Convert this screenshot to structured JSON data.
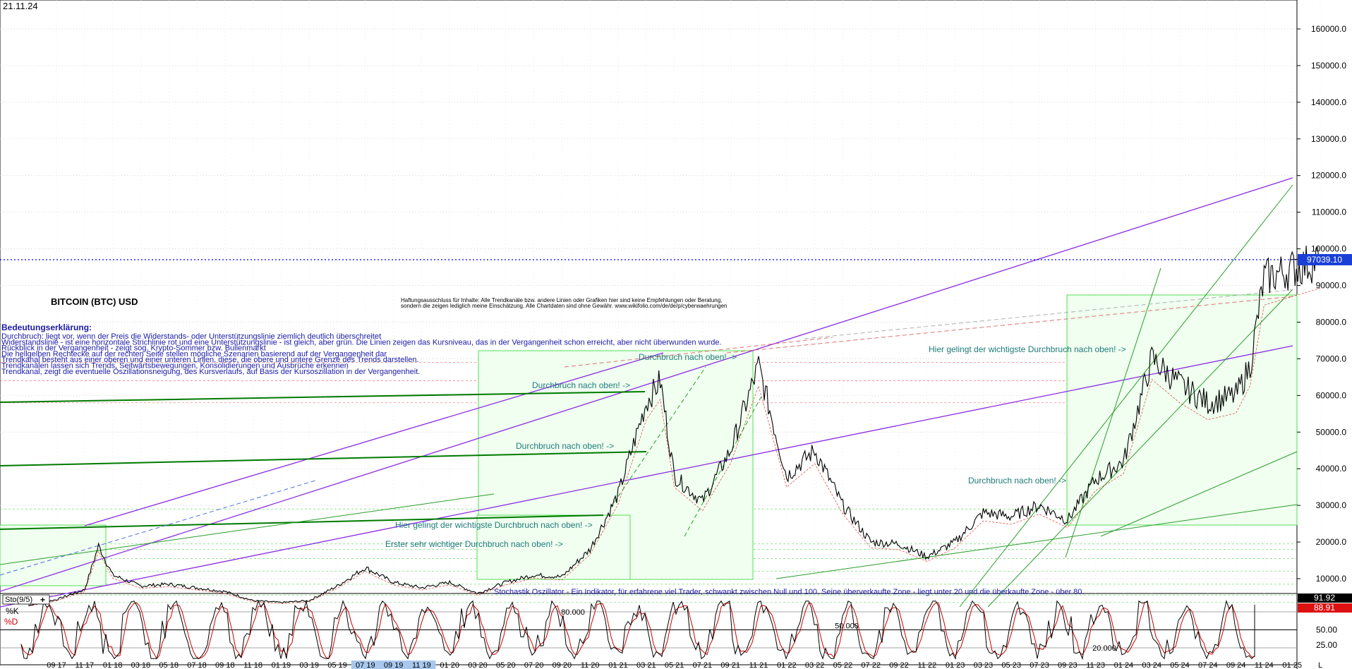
{
  "header": {
    "date": "21.11.24"
  },
  "chart_data": {
    "type": "line",
    "title": "BITCOIN (BTC) USD",
    "disclaimer": [
      "Haftungsausschluss für Inhalte: Alle Trendkanäle bzw. andere Linien oder Grafiken hier sind keine Empfehlungen oder Beratung,",
      "sondern die zeigen lediglich meine Einschätzung. Alle Chartdaten sind ohne Gewähr. www.wikifolio.com/de/de/p/cyberwaehrungen"
    ],
    "explanation_title": "Bedeutungserklärung:",
    "explanation_lines": [
      "Durchbruch: liegt vor, wenn der Preis die Widerstands- oder Unterstützungslinie ziemlich deutlich überschreitet",
      "Widerstandslinie - ist eine horizontale Strichlinie rot und eine Unterstützungslinie - ist gleich, aber grün. Die Linien zeigen das Kursniveau, das in der Vergangenheit schon erreicht, aber nicht überwunden wurde.",
      "Rückblick in der Vergangenheit - zeigt sog. Krypto-Sommer bzw. Bullenmarkt",
      "Die hellgelben Rechtecke auf der rechten Seite stellen mögliche Szenarien basierend auf der Vergangenheit dar",
      "Trendkanal besteht aus einer oberen und einer unteren Linien, diese, die obere und untere Grenze des Trends darstellen.",
      "Trendkanälen lassen sich Trends, Seitwärtsbewegungen, Konsolidierungen und Ausbrüche erkennen",
      "Trendkanal, zeigt die eventuelle Oszillationsneigung, des Kursverlaufs, auf Basis der Kursoszillation in der Vergangenheit."
    ],
    "annotations": [
      "Durchbruch nach oben! ->",
      "Durchbruch nach oben! ->",
      "Durchbruch nach oben! ->",
      "Hier gelingt der wichtigste Durchbruch nach oben! ->",
      "Erster sehr wichtiger Durchbruch nach oben! ->",
      "Durchbruch nach oben! ->",
      "Hier gelingt der wichtigste Durchbruch nach oben! ->"
    ],
    "y_ticks": [
      "160000.0",
      "150000.0",
      "140000.0",
      "130000.0",
      "120000.0",
      "110000.0",
      "100000.0",
      "90000.0",
      "80000.0",
      "70000.0",
      "60000.0",
      "50000.0",
      "40000.0",
      "30000.0",
      "20000.0",
      "10000.0"
    ],
    "ylim": [
      0,
      170000
    ],
    "last_price": "97039.10",
    "last_price_value": 97039.1,
    "x_ticks": [
      "09 17",
      "11 17",
      "01 18",
      "03 18",
      "05 18",
      "07 18",
      "09 18",
      "11 18",
      "01 19",
      "03 19",
      "05 19",
      "07 19",
      "09 19",
      "11 19",
      "01 20",
      "03 20",
      "05 20",
      "07 20",
      "09 20",
      "11 20",
      "01 21",
      "03 21",
      "05 21",
      "07 21",
      "09 21",
      "11 21",
      "01 22",
      "03 22",
      "05 22",
      "07 22",
      "09 22",
      "11 22",
      "01 23",
      "03 23",
      "05 23",
      "07 23",
      "09 23",
      "11 23",
      "01 24",
      "03 24",
      "05 24",
      "07 24",
      "09 24",
      "11 24",
      "01 25",
      "L"
    ],
    "price_series": [
      {
        "date": "07 17",
        "value": 2700
      },
      {
        "date": "09 17",
        "value": 4300
      },
      {
        "date": "11 17",
        "value": 7000
      },
      {
        "date": "12 17",
        "value": 19000
      },
      {
        "date": "01 18",
        "value": 11000
      },
      {
        "date": "03 18",
        "value": 8000
      },
      {
        "date": "05 18",
        "value": 8500
      },
      {
        "date": "07 18",
        "value": 7500
      },
      {
        "date": "09 18",
        "value": 6500
      },
      {
        "date": "11 18",
        "value": 4000
      },
      {
        "date": "01 19",
        "value": 3500
      },
      {
        "date": "03 19",
        "value": 4000
      },
      {
        "date": "05 19",
        "value": 8000
      },
      {
        "date": "07 19",
        "value": 13000
      },
      {
        "date": "09 19",
        "value": 9000
      },
      {
        "date": "11 19",
        "value": 7500
      },
      {
        "date": "01 20",
        "value": 9000
      },
      {
        "date": "03 20",
        "value": 6000
      },
      {
        "date": "05 20",
        "value": 9000
      },
      {
        "date": "07 20",
        "value": 11000
      },
      {
        "date": "09 20",
        "value": 10500
      },
      {
        "date": "11 20",
        "value": 18000
      },
      {
        "date": "01 21",
        "value": 33000
      },
      {
        "date": "03 21",
        "value": 58000
      },
      {
        "date": "04 21",
        "value": 64000
      },
      {
        "date": "05 21",
        "value": 38000
      },
      {
        "date": "07 21",
        "value": 31000
      },
      {
        "date": "09 21",
        "value": 45000
      },
      {
        "date": "11 21",
        "value": 68000
      },
      {
        "date": "01 22",
        "value": 38000
      },
      {
        "date": "03 22",
        "value": 45000
      },
      {
        "date": "05 22",
        "value": 30000
      },
      {
        "date": "07 22",
        "value": 20000
      },
      {
        "date": "09 22",
        "value": 19500
      },
      {
        "date": "11 22",
        "value": 16000
      },
      {
        "date": "01 23",
        "value": 20000
      },
      {
        "date": "03 23",
        "value": 28000
      },
      {
        "date": "05 23",
        "value": 27000
      },
      {
        "date": "07 23",
        "value": 30000
      },
      {
        "date": "09 23",
        "value": 26000
      },
      {
        "date": "11 23",
        "value": 37000
      },
      {
        "date": "01 24",
        "value": 42000
      },
      {
        "date": "03 24",
        "value": 70000
      },
      {
        "date": "05 24",
        "value": 63000
      },
      {
        "date": "07 24",
        "value": 58000
      },
      {
        "date": "09 24",
        "value": 60000
      },
      {
        "date": "10 24",
        "value": 68000
      },
      {
        "date": "11 24",
        "value": 92000
      },
      {
        "date": "L",
        "value": 97039
      }
    ],
    "stochastic": {
      "title": "Sto(9/5)",
      "k_label": "%K",
      "d_label": "%D",
      "k_value": "91.92",
      "d_value": "88.91",
      "k_value_num": 91.92,
      "d_value_num": 88.91,
      "levels_labels": [
        "50.00",
        "25.00"
      ],
      "level_values": [
        50,
        25
      ],
      "inner_labels": [
        "80.000",
        "50.000",
        "20.000"
      ],
      "description": "Stochastik Oszillator - Ein Indikator, für erfahrene viel Trader, schwankt zwischen Null und 100. Seine überverkaufte Zone - liegt unter 20 und die überkaufte Zone - über 80."
    }
  },
  "colors": {
    "candle": "#000000",
    "channel_purple": "#8a2be2",
    "trend_green": "#007a00",
    "rect_green": "#55dd55",
    "last_price_blue": "#0000ff",
    "annotation_teal": "#1f7a7a",
    "explanation_blue": "#1a1aa6",
    "k_line": "#000000",
    "d_line": "#cc0000"
  }
}
